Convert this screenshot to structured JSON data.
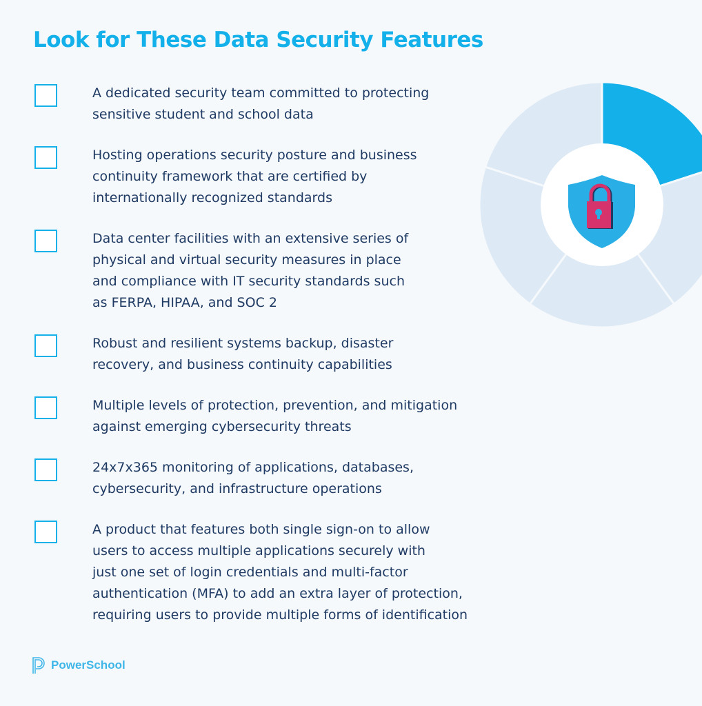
{
  "title": "Look for These Data Security Features",
  "items": [
    {
      "lines": [
        "A dedicated security team committed to protecting",
        "sensitive student and school data"
      ]
    },
    {
      "lines": [
        "Hosting operations security posture and business",
        "continuity framework that are certified by",
        "internationally recognized standards"
      ]
    },
    {
      "lines": [
        "Data center facilities with an extensive series of",
        "physical and virtual security measures in place",
        "and compliance with IT security standards such",
        "as FERPA, HIPAA, and SOC 2"
      ]
    },
    {
      "lines": [
        "Robust and resilient systems backup, disaster",
        "recovery, and business continuity capabilities"
      ]
    },
    {
      "lines": [
        "Multiple levels of protection, prevention, and mitigation",
        "against emerging cybersecurity threats"
      ]
    },
    {
      "lines": [
        "24x7x365 monitoring of applications, databases,",
        "cybersecurity, and infrastructure operations"
      ]
    },
    {
      "lines": [
        "A product that features both single sign-on to allow",
        "users to access multiple applications securely with",
        "just one set of login credentials and multi-factor",
        "authentication (MFA) to add an extra layer of protection,",
        "requiring users to provide multiple forms of identification"
      ]
    }
  ],
  "graphic": {
    "segments": 5,
    "highlighted_segment": 1,
    "icon": "shield-lock-icon"
  },
  "logo": {
    "text": "PowerSchool"
  },
  "colors": {
    "accent": "#14b0ea",
    "text": "#1f3a63",
    "segment_light": "#dde9f4",
    "lock": "#d6336c"
  }
}
